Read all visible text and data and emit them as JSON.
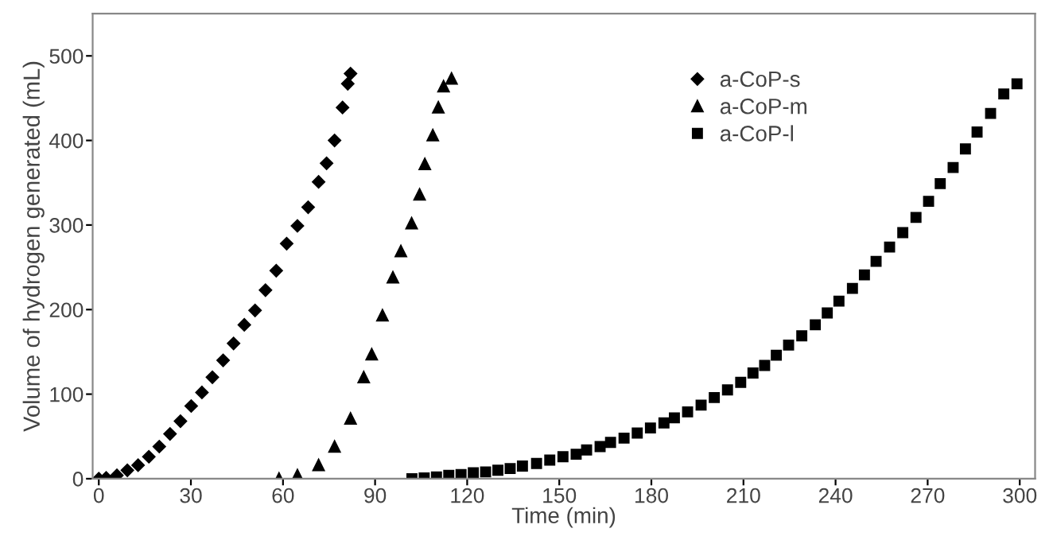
{
  "chart_data": {
    "type": "scatter",
    "xlabel": "Time (min)",
    "ylabel": "Volume of hydrogen generated (mL)",
    "xlim": [
      -2,
      305
    ],
    "ylim": [
      0,
      550
    ],
    "xticks": [
      0,
      30,
      60,
      90,
      120,
      150,
      180,
      210,
      240,
      270,
      300
    ],
    "yticks": [
      0,
      100,
      200,
      300,
      400,
      500
    ],
    "grid": false,
    "legend": "top right",
    "series": [
      {
        "name": "a-CoP-s",
        "color": "#000000",
        "marker": "diamond",
        "x": [
          0,
          2.4,
          5.9,
          9.3,
          12.8,
          16.3,
          19.7,
          23.2,
          26.6,
          30.1,
          33.6,
          37,
          40.5,
          43.9,
          47.4,
          50.9,
          54.3,
          57.8,
          61.2,
          64.7,
          68.2,
          71.6,
          74.2,
          76.8,
          79.4,
          81.1,
          82
        ],
        "values": [
          0,
          1,
          4,
          10,
          16,
          26,
          38,
          53,
          68,
          86,
          102,
          120,
          140,
          160,
          182,
          199,
          223,
          246,
          278,
          299,
          321,
          351,
          373,
          400,
          439,
          467,
          479
        ]
      },
      {
        "name": "a-CoP-m",
        "color": "#000000",
        "marker": "triangle",
        "x": [
          58.7,
          64.7,
          71.6,
          76.8,
          82,
          86.3,
          88.9,
          92.4,
          95.8,
          98.4,
          101.9,
          104.5,
          106.2,
          108.8,
          110.6,
          112.3,
          114.9
        ],
        "values": [
          0,
          4,
          16,
          38,
          71,
          120,
          147,
          193,
          238,
          269,
          302,
          336,
          372,
          406,
          439,
          464,
          473
        ]
      },
      {
        "name": "a-CoP-l",
        "color": "#000000",
        "marker": "square",
        "x": [
          102,
          106,
          110,
          114,
          118,
          122,
          126,
          130,
          134,
          138,
          142.6,
          146.9,
          151.2,
          155.5,
          158.9,
          163.3,
          166.7,
          171.1,
          175.4,
          179.7,
          184.1,
          187.5,
          191.8,
          196.2,
          200.5,
          204.8,
          209.1,
          213.1,
          216.9,
          220.7,
          224.7,
          229,
          233.4,
          237.3,
          241.1,
          245.5,
          249.4,
          253.2,
          257.6,
          261.9,
          266.2,
          270.3,
          274.1,
          278.3,
          282.3,
          286.1,
          290.5,
          294.8,
          299.1
        ],
        "values": [
          0,
          1,
          2,
          4,
          5,
          7,
          8,
          10,
          12,
          15,
          18,
          22,
          26,
          29,
          34,
          38,
          43,
          48,
          54,
          60,
          66,
          72,
          79,
          87,
          96,
          105,
          114,
          125,
          134,
          146,
          158,
          169,
          182,
          196,
          210,
          225,
          241,
          257,
          274,
          291,
          309,
          328,
          349,
          368,
          390,
          410,
          432,
          455,
          467
        ]
      }
    ]
  }
}
